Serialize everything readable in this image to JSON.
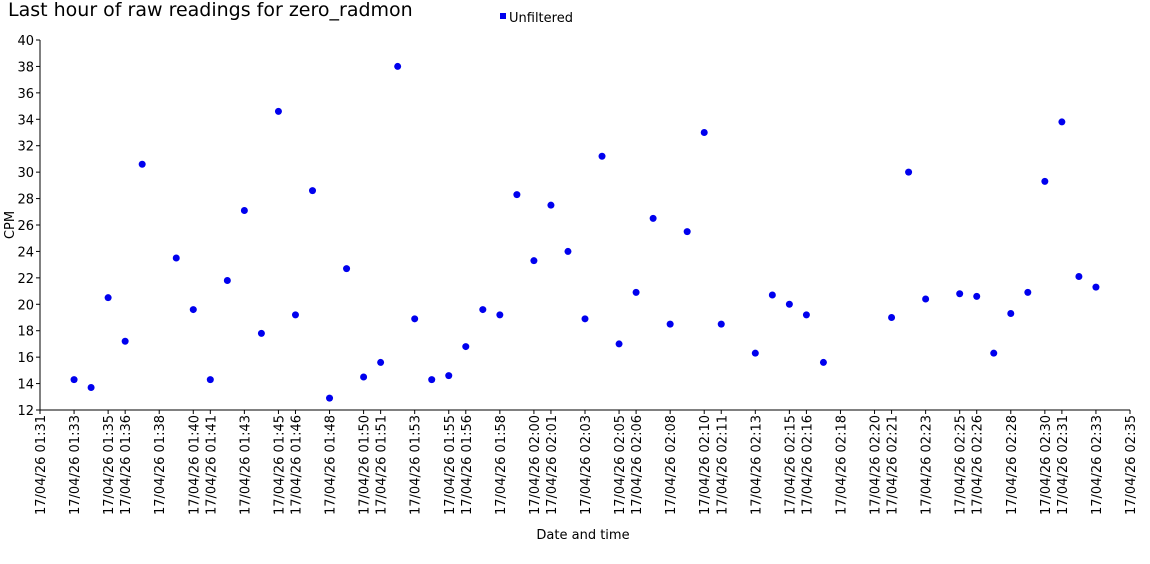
{
  "chart_data": {
    "type": "scatter",
    "title": "Last hour of raw readings for zero_radmon",
    "xlabel": "Date and time",
    "ylabel": "CPM",
    "legend": "top",
    "xlim": [
      "17/04/26 01:31",
      "17/04/26 02:35"
    ],
    "ylim": [
      12,
      40
    ],
    "yticks": [
      12,
      14,
      16,
      18,
      20,
      22,
      24,
      26,
      28,
      30,
      32,
      34,
      36,
      38,
      40
    ],
    "xticks": [
      "17/04/26 01:31",
      "17/04/26 01:33",
      "17/04/26 01:35",
      "17/04/26 01:36",
      "17/04/26 01:38",
      "17/04/26 01:40",
      "17/04/26 01:41",
      "17/04/26 01:43",
      "17/04/26 01:45",
      "17/04/26 01:46",
      "17/04/26 01:48",
      "17/04/26 01:50",
      "17/04/26 01:51",
      "17/04/26 01:53",
      "17/04/26 01:55",
      "17/04/26 01:56",
      "17/04/26 01:58",
      "17/04/26 02:00",
      "17/04/26 02:01",
      "17/04/26 02:03",
      "17/04/26 02:05",
      "17/04/26 02:06",
      "17/04/26 02:08",
      "17/04/26 02:10",
      "17/04/26 02:11",
      "17/04/26 02:13",
      "17/04/26 02:15",
      "17/04/26 02:16",
      "17/04/26 02:18",
      "17/04/26 02:20",
      "17/04/26 02:21",
      "17/04/26 02:23",
      "17/04/26 02:25",
      "17/04/26 02:26",
      "17/04/26 02:28",
      "17/04/26 02:30",
      "17/04/26 02:31",
      "17/04/26 02:33",
      "17/04/26 02:35"
    ],
    "series": [
      {
        "name": "Unfiltered",
        "color": "#0000ee",
        "x": [
          "17/04/26 01:33",
          "17/04/26 01:34",
          "17/04/26 01:35",
          "17/04/26 01:36",
          "17/04/26 01:37",
          "17/04/26 01:39",
          "17/04/26 01:40",
          "17/04/26 01:41",
          "17/04/26 01:42",
          "17/04/26 01:43",
          "17/04/26 01:44",
          "17/04/26 01:45",
          "17/04/26 01:46",
          "17/04/26 01:47",
          "17/04/26 01:48",
          "17/04/26 01:49",
          "17/04/26 01:50",
          "17/04/26 01:51",
          "17/04/26 01:52",
          "17/04/26 01:53",
          "17/04/26 01:54",
          "17/04/26 01:55",
          "17/04/26 01:56",
          "17/04/26 01:57",
          "17/04/26 01:58",
          "17/04/26 01:59",
          "17/04/26 02:00",
          "17/04/26 02:01",
          "17/04/26 02:02",
          "17/04/26 02:03",
          "17/04/26 02:04",
          "17/04/26 02:05",
          "17/04/26 02:06",
          "17/04/26 02:07",
          "17/04/26 02:08",
          "17/04/26 02:09",
          "17/04/26 02:10",
          "17/04/26 02:11",
          "17/04/26 02:13",
          "17/04/26 02:14",
          "17/04/26 02:15",
          "17/04/26 02:16",
          "17/04/26 02:17",
          "17/04/26 02:21",
          "17/04/26 02:22",
          "17/04/26 02:23",
          "17/04/26 02:25",
          "17/04/26 02:26",
          "17/04/26 02:27",
          "17/04/26 02:28",
          "17/04/26 02:29",
          "17/04/26 02:30",
          "17/04/26 02:31",
          "17/04/26 02:32",
          "17/04/26 02:33"
        ],
        "values": [
          14.3,
          13.7,
          20.5,
          17.2,
          30.6,
          23.5,
          19.6,
          14.3,
          21.8,
          27.1,
          17.8,
          34.6,
          19.2,
          28.6,
          12.9,
          22.7,
          14.5,
          15.6,
          38.0,
          18.9,
          14.3,
          14.6,
          16.8,
          19.6,
          19.2,
          28.3,
          23.3,
          27.5,
          24.0,
          18.9,
          31.2,
          17.0,
          20.9,
          26.5,
          18.5,
          25.5,
          33.0,
          18.5,
          16.3,
          20.7,
          20.0,
          19.2,
          15.6,
          19.0,
          30.0,
          20.4,
          20.8,
          20.6,
          16.3,
          19.3,
          20.9,
          29.3,
          33.8,
          22.1,
          21.3
        ]
      }
    ]
  }
}
